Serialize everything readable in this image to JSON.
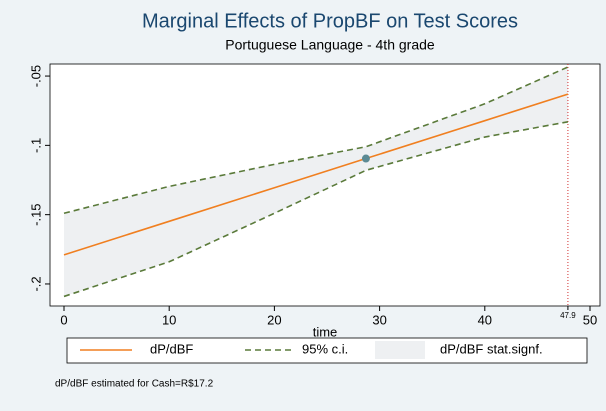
{
  "chart_data": {
    "type": "line",
    "title": "Marginal Effects of PropBF on Test Scores",
    "subtitle": "Portuguese Language - 4th grade",
    "x_label": "time",
    "note": "dP/dBF estimated for Cash=R$17.2",
    "x": [
      0,
      10,
      20,
      28.7,
      40,
      47.9
    ],
    "series": [
      {
        "name": "dP/dBF",
        "color": "#f07f20",
        "values": [
          -0.179,
          -0.1548,
          -0.1306,
          -0.1095,
          -0.0822,
          -0.063
        ]
      },
      {
        "name": "95% c.i.",
        "color": "#5a7a3a",
        "upper": [
          -0.149,
          -0.1296,
          -0.1137,
          -0.101,
          -0.07,
          -0.0435
        ],
        "lower": [
          -0.209,
          -0.184,
          -0.149,
          -0.118,
          -0.094,
          -0.083
        ]
      }
    ],
    "band": {
      "name": "dP/dBF stat.signf.",
      "color": "#eef0f2"
    },
    "point": {
      "x": 28.7,
      "y": -0.1095,
      "color": "#5b8a94"
    },
    "vline": {
      "x": 47.9,
      "color": "#d03030"
    },
    "xlim": [
      -1.33,
      50.95
    ],
    "ylim": [
      -0.2159,
      -0.0413
    ],
    "xticks": [
      0,
      10,
      20,
      30,
      40,
      50
    ],
    "yticks": [
      {
        "value": -0.05,
        "label": "-.05"
      },
      {
        "value": -0.1,
        "label": "-.1"
      },
      {
        "value": -0.15,
        "label": "-.15"
      },
      {
        "value": -0.2,
        "label": "-.2"
      }
    ]
  }
}
